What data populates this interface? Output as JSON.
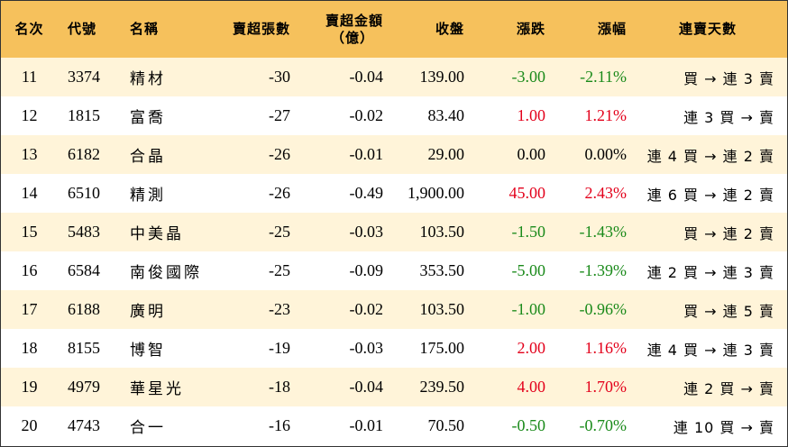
{
  "colors": {
    "header_bg": "#f6c15c",
    "odd_row_bg": "#fff4d9",
    "even_row_bg": "#ffffff",
    "up": "#e3001b",
    "down": "#1a8a1a"
  },
  "headers": {
    "rank": "名次",
    "code": "代號",
    "name": "名稱",
    "net_sell_lots": "賣超張數",
    "net_sell_amount_line1": "賣超金額",
    "net_sell_amount_line2": "（億）",
    "close": "收盤",
    "change": "漲跌",
    "change_pct": "漲幅",
    "streak": "連賣天數"
  },
  "rows": [
    {
      "rank": "11",
      "code": "3374",
      "name": "精材",
      "lots": "-30",
      "amount": "-0.04",
      "close": "139.00",
      "change": "-3.00",
      "pct": "-2.11%",
      "dir": "down",
      "streak": "買 → 連 3 賣"
    },
    {
      "rank": "12",
      "code": "1815",
      "name": "富喬",
      "lots": "-27",
      "amount": "-0.02",
      "close": "83.40",
      "change": "1.00",
      "pct": "1.21%",
      "dir": "up",
      "streak": "連 3 買 → 賣"
    },
    {
      "rank": "13",
      "code": "6182",
      "name": "合晶",
      "lots": "-26",
      "amount": "-0.01",
      "close": "29.00",
      "change": "0.00",
      "pct": "0.00%",
      "dir": "flat",
      "streak": "連 4 買 → 連 2 賣"
    },
    {
      "rank": "14",
      "code": "6510",
      "name": "精測",
      "lots": "-26",
      "amount": "-0.49",
      "close": "1,900.00",
      "change": "45.00",
      "pct": "2.43%",
      "dir": "up",
      "streak": "連 6 買 → 連 2 賣"
    },
    {
      "rank": "15",
      "code": "5483",
      "name": "中美晶",
      "lots": "-25",
      "amount": "-0.03",
      "close": "103.50",
      "change": "-1.50",
      "pct": "-1.43%",
      "dir": "down",
      "streak": "買 → 連 2 賣"
    },
    {
      "rank": "16",
      "code": "6584",
      "name": "南俊國際",
      "lots": "-25",
      "amount": "-0.09",
      "close": "353.50",
      "change": "-5.00",
      "pct": "-1.39%",
      "dir": "down",
      "streak": "連 2 買 → 連 3 賣"
    },
    {
      "rank": "17",
      "code": "6188",
      "name": "廣明",
      "lots": "-23",
      "amount": "-0.02",
      "close": "103.50",
      "change": "-1.00",
      "pct": "-0.96%",
      "dir": "down",
      "streak": "買 → 連 5 賣"
    },
    {
      "rank": "18",
      "code": "8155",
      "name": "博智",
      "lots": "-19",
      "amount": "-0.03",
      "close": "175.00",
      "change": "2.00",
      "pct": "1.16%",
      "dir": "up",
      "streak": "連 4 買 → 連 3 賣"
    },
    {
      "rank": "19",
      "code": "4979",
      "name": "華星光",
      "lots": "-18",
      "amount": "-0.04",
      "close": "239.50",
      "change": "4.00",
      "pct": "1.70%",
      "dir": "up",
      "streak": "連 2 買 → 賣"
    },
    {
      "rank": "20",
      "code": "4743",
      "name": "合一",
      "lots": "-16",
      "amount": "-0.01",
      "close": "70.50",
      "change": "-0.50",
      "pct": "-0.70%",
      "dir": "down",
      "streak": "連 10 買 → 賣"
    }
  ]
}
